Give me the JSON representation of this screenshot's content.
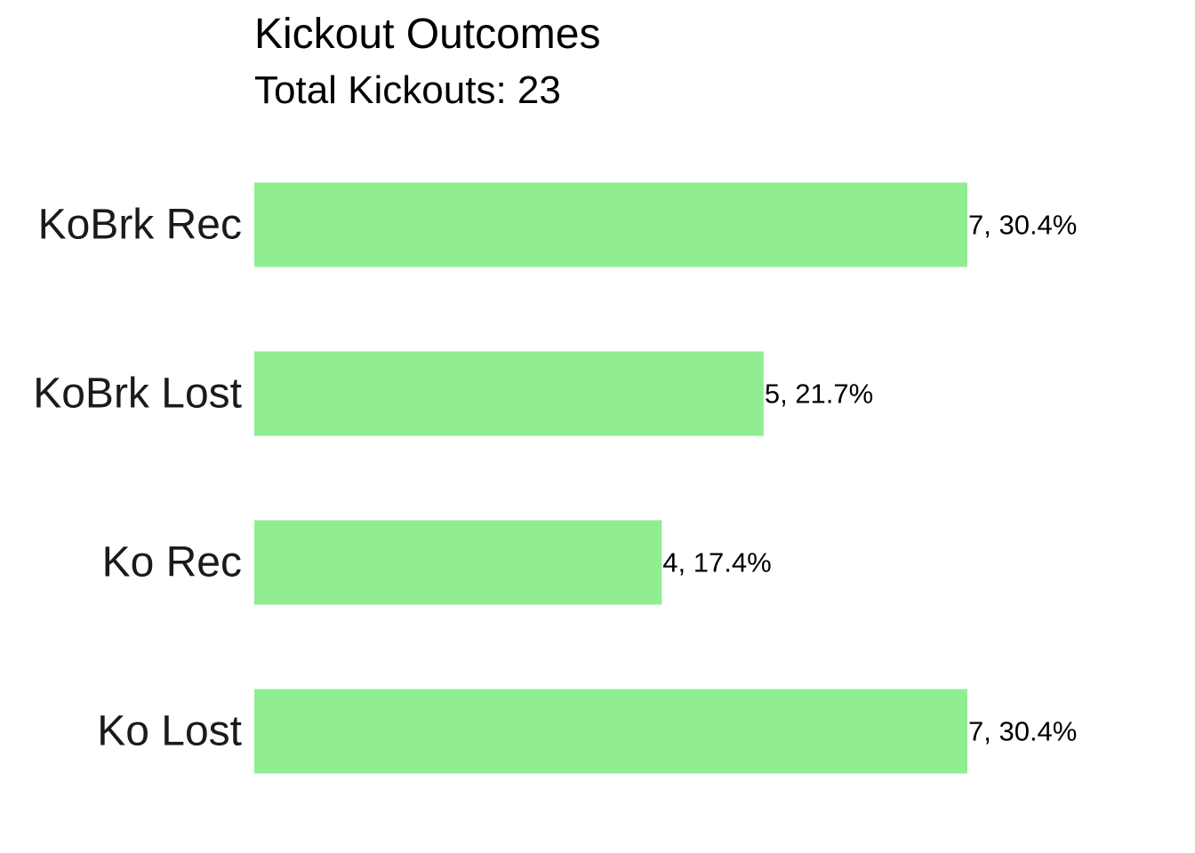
{
  "chart_data": {
    "type": "bar",
    "orientation": "horizontal",
    "title": "Kickout Outcomes",
    "subtitle": "Total Kickouts: 23",
    "categories": [
      "KoBrk Rec",
      "KoBrk Lost",
      "Ko Rec",
      "Ko Lost"
    ],
    "values": [
      7,
      5,
      4,
      7
    ],
    "data_labels": [
      "7, 30.4%",
      "5, 21.7%",
      "4, 17.4%",
      "7, 30.4%"
    ],
    "xlabel": "",
    "ylabel": "",
    "xlim": [
      0,
      7
    ],
    "grid": false,
    "legend": "none",
    "bar_color": "#90EE90"
  }
}
